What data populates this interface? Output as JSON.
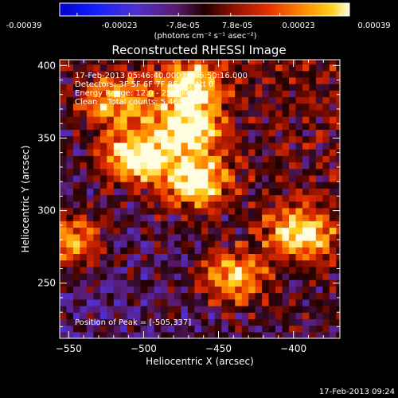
{
  "colorbar": {
    "ticks": [
      "-0.00039",
      "-0.00023",
      "-7.8e-05",
      "7.8e-05",
      "0.00023",
      "0.00039"
    ],
    "units": "(photons cm⁻² s⁻¹ asec⁻²)",
    "range": [
      -0.00039,
      0.00039
    ]
  },
  "chart_data": {
    "type": "heatmap",
    "title": "Reconstructed RHESSI Image",
    "xlabel": "Heliocentric X (arcsec)",
    "ylabel": "Heliocentric Y (arcsec)",
    "xlim": [
      -556,
      -369
    ],
    "ylim": [
      212,
      404
    ],
    "xticks": [
      -550,
      -500,
      -450,
      -400
    ],
    "xtick_labels": [
      "−550",
      "−500",
      "−450",
      "−400"
    ],
    "yticks": [
      250,
      300,
      350,
      400
    ],
    "ytick_labels": [
      "250",
      "300",
      "350",
      "400"
    ],
    "info_lines": [
      "17-Feb-2013 05:46:40.000 to 05:50:16.000",
      "Detectors: 3F 5F 6F 7F 8F 9F, Att 0",
      "Energy Range: 12.0 - 25.0 keV",
      "Clean    Total counts: 5.46E+03"
    ],
    "peak_label": "Position of Peak = [-505,337]",
    "peak": [
      -505,
      337
    ],
    "bright_regions": [
      {
        "x": -505,
        "y": 337,
        "level": 1.0
      },
      {
        "x": -465,
        "y": 320,
        "level": 0.95
      },
      {
        "x": -470,
        "y": 355,
        "level": 0.9
      },
      {
        "x": -470,
        "y": 385,
        "level": 0.85
      },
      {
        "x": -395,
        "y": 285,
        "level": 0.85
      },
      {
        "x": -550,
        "y": 280,
        "level": 0.75
      },
      {
        "x": -440,
        "y": 255,
        "level": 0.75
      },
      {
        "x": -520,
        "y": 375,
        "level": 0.7
      }
    ]
  },
  "footer_timestamp": "17-Feb-2013 09:24"
}
